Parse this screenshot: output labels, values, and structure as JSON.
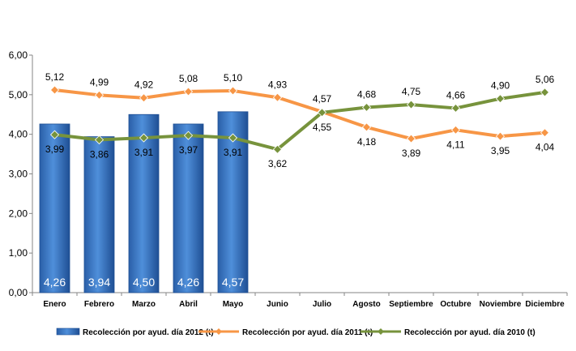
{
  "chart_data": {
    "type": "bar",
    "categories": [
      "Enero",
      "Febrero",
      "Marzo",
      "Abril",
      "Mayo",
      "Junio",
      "Julio",
      "Agosto",
      "Septiembre",
      "Octubre",
      "Noviembre",
      "Diciembre"
    ],
    "ylim": [
      0,
      6
    ],
    "yticks": [
      "0,00",
      "1,00",
      "2,00",
      "3,00",
      "4,00",
      "5,00",
      "6,00"
    ],
    "grid": false,
    "legend_position": "bottom",
    "series": [
      {
        "name": "Recolección por ayud. día 2012 (t)",
        "kind": "bar",
        "color": "#3A78C8",
        "values": [
          4.26,
          3.94,
          4.5,
          4.26,
          4.57,
          null,
          null,
          null,
          null,
          null,
          null,
          null
        ],
        "labels": [
          "4,26",
          "3,94",
          "4,50",
          "4,26",
          "4,57"
        ]
      },
      {
        "name": "Recolección por ayud. día 2011 (t)",
        "kind": "line",
        "color": "#F79646",
        "values": [
          5.12,
          4.99,
          4.92,
          5.08,
          5.1,
          4.93,
          4.57,
          4.18,
          3.89,
          4.11,
          3.95,
          4.04
        ],
        "labels": [
          "5,12",
          "4,99",
          "4,92",
          "5,08",
          "5,10",
          "4,93",
          "4,57",
          "4,18",
          "3,89",
          "4,11",
          "3,95",
          "4,04"
        ]
      },
      {
        "name": "Recolección por ayud. día 2010 (t)",
        "kind": "line",
        "color": "#77933C",
        "values": [
          3.99,
          3.86,
          3.91,
          3.97,
          3.91,
          3.62,
          4.55,
          4.68,
          4.75,
          4.66,
          4.9,
          5.06
        ],
        "labels": [
          "3,99",
          "3,86",
          "3,91",
          "3,97",
          "3,91",
          "3,62",
          "4,55",
          "4,68",
          "4,75",
          "4,66",
          "4,90",
          "5,06"
        ]
      }
    ]
  }
}
